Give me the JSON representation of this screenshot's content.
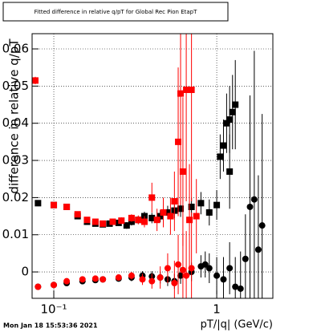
{
  "chart_data": {
    "type": "scatter",
    "title": "Fitted difference in relative q/pT for Global Rec Pion EtapT",
    "x_label": "pT/|q| (GeV/c)",
    "y_label": "difference in relative q/pT",
    "footer": "Mon Jan 18 15:53:36 2021",
    "xlog": true,
    "grid": true,
    "xlim": [
      0.0736,
      2.21
    ],
    "ylim": [
      -0.0071,
      0.0641
    ],
    "xticks": [
      {
        "value": 0.1,
        "label": "10⁻¹"
      },
      1
    ],
    "yticks": [
      0,
      0.01,
      0.02,
      0.03,
      0.04,
      0.05,
      0.06
    ],
    "series": [
      {
        "color": "#000000",
        "marker": "square",
        "x": [
          0.08,
          0.1,
          0.12,
          0.14,
          0.16,
          0.18,
          0.2,
          0.22,
          0.25,
          0.28,
          0.3,
          0.33,
          0.36,
          0.4,
          0.45,
          0.5,
          0.55,
          0.6,
          0.7,
          0.8,
          0.9,
          1.0,
          1.05,
          1.1,
          1.15,
          1.2,
          1.25,
          1.3,
          1.2
        ],
        "values": [
          0.0185,
          0.018,
          0.0175,
          0.015,
          0.0135,
          0.013,
          0.0128,
          0.013,
          0.0132,
          0.0125,
          0.0135,
          0.014,
          0.015,
          0.0145,
          0.015,
          0.016,
          0.0165,
          0.017,
          0.0175,
          0.0185,
          0.016,
          0.018,
          0.031,
          0.034,
          0.04,
          0.041,
          0.043,
          0.045,
          0.027
        ],
        "errors": [
          0.0008,
          0.0006,
          0.0006,
          0.0006,
          0.0006,
          0.0006,
          0.0007,
          0.0007,
          0.0008,
          0.0009,
          0.001,
          0.001,
          0.0012,
          0.0014,
          0.0016,
          0.0018,
          0.002,
          0.0022,
          0.0025,
          0.003,
          0.0035,
          0.004,
          0.006,
          0.007,
          0.008,
          0.009,
          0.01,
          0.012,
          0.01
        ]
      },
      {
        "color": "#ff0000",
        "marker": "square",
        "x": [
          0.077,
          0.1,
          0.12,
          0.14,
          0.16,
          0.18,
          0.2,
          0.23,
          0.26,
          0.3,
          0.33,
          0.36,
          0.4,
          0.43,
          0.47,
          0.52,
          0.55,
          0.58,
          0.6,
          0.62,
          0.65,
          0.68,
          0.7,
          0.75
        ],
        "values": [
          0.0515,
          0.018,
          0.0175,
          0.0155,
          0.014,
          0.0135,
          0.013,
          0.0135,
          0.0138,
          0.0145,
          0.014,
          0.0135,
          0.02,
          0.014,
          0.016,
          0.015,
          0.019,
          0.035,
          0.048,
          0.027,
          0.049,
          0.014,
          0.049,
          0.015
        ],
        "errors": [
          0.001,
          0.0006,
          0.0006,
          0.0006,
          0.0006,
          0.0007,
          0.0007,
          0.0008,
          0.0009,
          0.001,
          0.0012,
          0.0015,
          0.004,
          0.003,
          0.004,
          0.005,
          0.008,
          0.02,
          0.03,
          0.02,
          0.03,
          0.015,
          0.03,
          0.01
        ]
      },
      {
        "color": "#000000",
        "marker": "circle",
        "x": [
          0.08,
          0.1,
          0.12,
          0.15,
          0.18,
          0.2,
          0.25,
          0.3,
          0.35,
          0.4,
          0.45,
          0.5,
          0.55,
          0.6,
          0.7,
          0.8,
          0.85,
          0.9,
          1.0,
          1.1,
          1.2,
          1.3,
          1.4,
          1.5,
          1.6,
          1.7,
          1.9,
          1.8
        ],
        "values": [
          -0.004,
          -0.0035,
          -0.003,
          -0.0025,
          -0.0022,
          -0.002,
          -0.0018,
          -0.0015,
          -0.001,
          -0.0012,
          -0.0015,
          -0.002,
          -0.0025,
          -0.001,
          0.0,
          0.0015,
          0.002,
          0.001,
          -0.001,
          -0.002,
          0.001,
          -0.004,
          -0.0045,
          0.0035,
          0.0175,
          0.0195,
          0.0125,
          0.006
        ],
        "errors": [
          0.0008,
          0.0006,
          0.0006,
          0.0006,
          0.0006,
          0.0007,
          0.0008,
          0.001,
          0.0012,
          0.0014,
          0.0016,
          0.0018,
          0.002,
          0.0022,
          0.0025,
          0.003,
          0.0035,
          0.004,
          0.005,
          0.006,
          0.007,
          0.008,
          0.01,
          0.012,
          0.03,
          0.04,
          0.03,
          0.02
        ]
      },
      {
        "color": "#ff0000",
        "marker": "circle",
        "x": [
          0.08,
          0.1,
          0.12,
          0.15,
          0.18,
          0.2,
          0.25,
          0.3,
          0.35,
          0.4,
          0.45,
          0.5,
          0.55,
          0.58,
          0.62,
          0.65,
          0.7
        ],
        "values": [
          -0.004,
          -0.0035,
          -0.0025,
          -0.002,
          -0.0018,
          -0.002,
          -0.0015,
          -0.001,
          -0.002,
          -0.0025,
          -0.0015,
          0.001,
          -0.003,
          0.002,
          0.0005,
          -0.001,
          0.001
        ],
        "errors": [
          0.0008,
          0.0006,
          0.0006,
          0.0006,
          0.0007,
          0.0007,
          0.0008,
          0.001,
          0.0015,
          0.002,
          0.003,
          0.004,
          0.006,
          0.008,
          0.01,
          0.012,
          0.015
        ]
      }
    ]
  }
}
